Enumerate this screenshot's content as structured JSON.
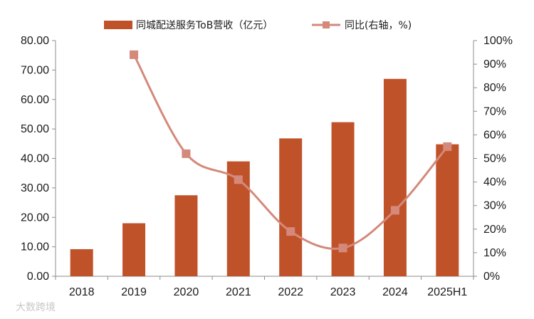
{
  "chart_data": {
    "type": "bar+line",
    "categories": [
      "2018",
      "2019",
      "2020",
      "2021",
      "2022",
      "2023",
      "2024",
      "2025H1"
    ],
    "series": [
      {
        "name": "同城配送服务ToB营收（亿元）",
        "type": "bar",
        "axis": "left",
        "color": "#c0522a",
        "values": [
          9.2,
          18.0,
          27.5,
          39.0,
          46.8,
          52.3,
          67.0,
          44.8
        ]
      },
      {
        "name": "同比(右轴，%)",
        "type": "line",
        "axis": "right",
        "color": "#d4897a",
        "values": [
          null,
          94,
          52,
          41,
          19,
          12,
          28,
          55
        ]
      }
    ],
    "left_axis": {
      "min": 0,
      "max": 80,
      "step": 10,
      "tick_labels": [
        "0.00",
        "10.00",
        "20.00",
        "30.00",
        "40.00",
        "50.00",
        "60.00",
        "70.00",
        "80.00"
      ]
    },
    "right_axis": {
      "min": 0,
      "max": 100,
      "step": 10,
      "tick_labels": [
        "0%",
        "10%",
        "20%",
        "30%",
        "40%",
        "50%",
        "60%",
        "70%",
        "80%",
        "90%",
        "100%"
      ]
    },
    "legend": {
      "placement": "top-center",
      "items": [
        {
          "label": "同城配送服务ToB营收（亿元）",
          "marker": "bar"
        },
        {
          "label": "同比(右轴，%)",
          "marker": "line-square"
        }
      ]
    },
    "grid": false
  },
  "watermark": {
    "text": "大数跨境"
  }
}
